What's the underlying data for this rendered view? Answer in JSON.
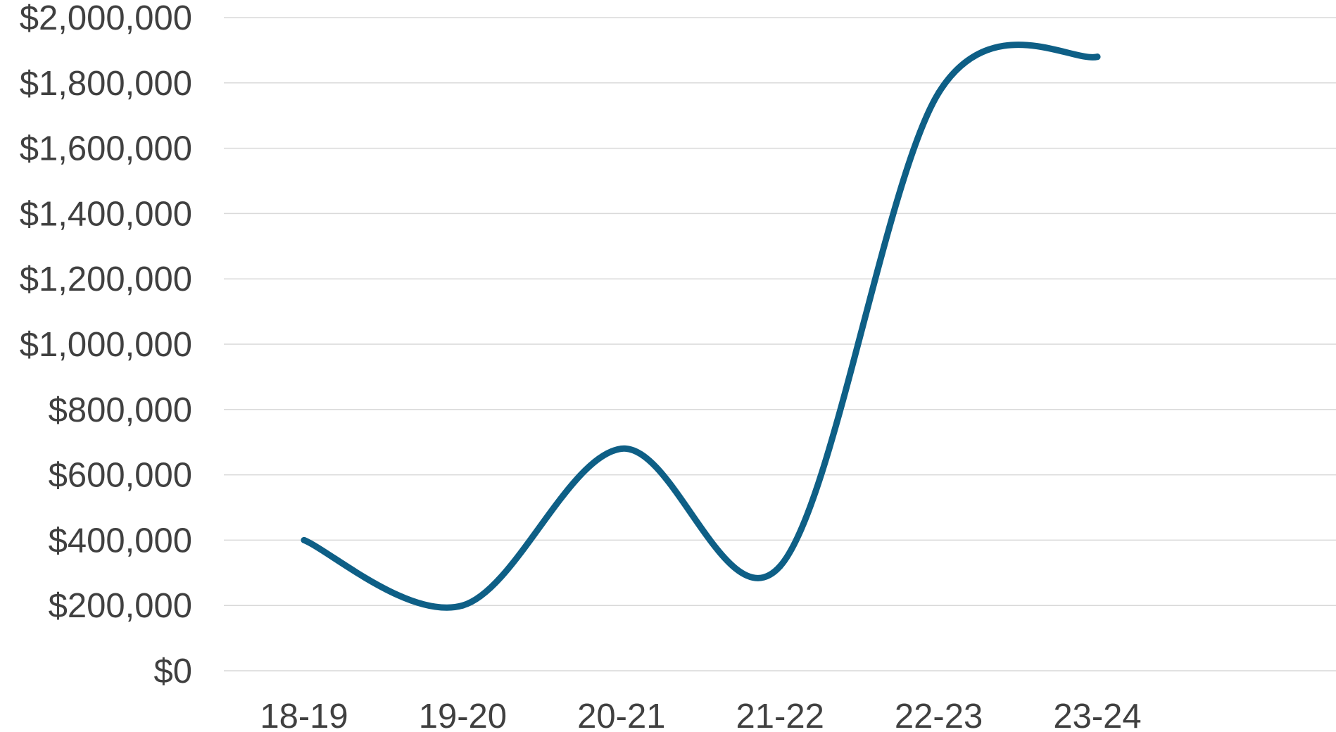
{
  "chart_data": {
    "type": "line",
    "smooth": true,
    "categories": [
      "18-19",
      "19-20",
      "20-21",
      "21-22",
      "22-23",
      "23-24"
    ],
    "series": [
      {
        "values": [
          400000,
          200000,
          680000,
          320000,
          1770000,
          1880000
        ]
      }
    ],
    "title": "",
    "xlabel": "",
    "ylabel": "",
    "ylim": [
      0,
      2000000
    ],
    "yticks": [
      {
        "value": 0,
        "label": "$0"
      },
      {
        "value": 200000,
        "label": "$200,000"
      },
      {
        "value": 400000,
        "label": "$400,000"
      },
      {
        "value": 600000,
        "label": "$600,000"
      },
      {
        "value": 800000,
        "label": "$800,000"
      },
      {
        "value": 1000000,
        "label": "$1,000,000"
      },
      {
        "value": 1200000,
        "label": "$1,200,000"
      },
      {
        "value": 1400000,
        "label": "$1,400,000"
      },
      {
        "value": 1600000,
        "label": "$1,600,000"
      },
      {
        "value": 1800000,
        "label": "$1,800,000"
      },
      {
        "value": 2000000,
        "label": "$2,000,000"
      }
    ],
    "grid": true,
    "legend": "none",
    "colors": {
      "line": "#0E5F86",
      "grid": "#D9D9D9",
      "text": "#404040"
    }
  }
}
